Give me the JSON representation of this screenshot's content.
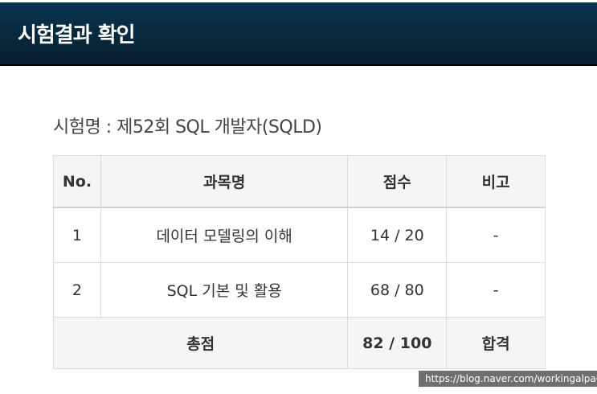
{
  "header": {
    "title": "시험결과 확인"
  },
  "exam_name": "시험명 : 제52회 SQL 개발자(SQLD)",
  "table": {
    "columns": [
      "No.",
      "과목명",
      "점수",
      "비고"
    ],
    "rows": [
      {
        "no": "1",
        "subject": "데이터 모델링의 이해",
        "score": "14 / 20",
        "note": "-"
      },
      {
        "no": "2",
        "subject": "SQL 기본 및 활용",
        "score": "68 / 80",
        "note": "-"
      }
    ],
    "total": {
      "label": "총점",
      "score": "82 / 100",
      "result": "합격"
    }
  },
  "watermark": "https://blog.naver.com/workingalpaca"
}
